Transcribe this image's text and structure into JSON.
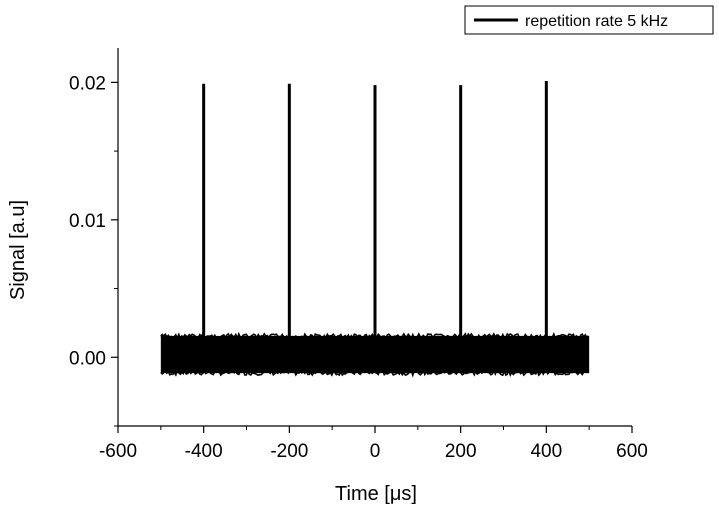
{
  "chart_data": {
    "type": "line",
    "title": "",
    "xlabel": "Time [μs]",
    "ylabel": "Signal [a.u]",
    "xlim": [
      -600,
      600
    ],
    "ylim": [
      -0.005,
      0.0225
    ],
    "x_ticks": [
      -600,
      -400,
      -200,
      0,
      200,
      400,
      600
    ],
    "x_tick_labels": [
      "-600",
      "-400",
      "-200",
      "0",
      "200",
      "400",
      "600"
    ],
    "y_ticks": [
      0.0,
      0.01,
      0.02
    ],
    "y_tick_labels": [
      "0.00",
      "0.01",
      "0.02"
    ],
    "grid": false,
    "legend_position": "top-right",
    "series": [
      {
        "name": "repetition rate 5 kHz",
        "color": "#000000",
        "x_range": [
          -500,
          500
        ],
        "noise_band": [
          -0.0013,
          0.0017
        ],
        "pulses": [
          {
            "x": -400,
            "y": 0.0199
          },
          {
            "x": -200,
            "y": 0.0199
          },
          {
            "x": 0,
            "y": 0.0198
          },
          {
            "x": 200,
            "y": 0.0198
          },
          {
            "x": 400,
            "y": 0.0201
          }
        ]
      }
    ]
  }
}
